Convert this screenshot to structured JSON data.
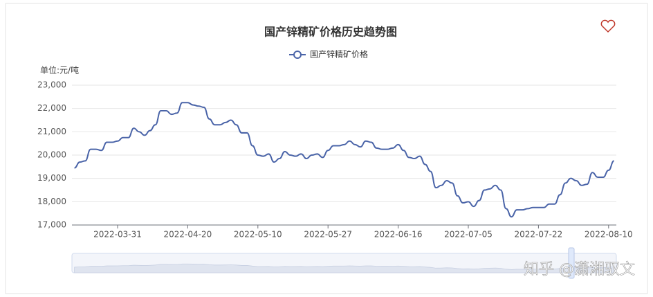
{
  "chart_data": {
    "type": "line",
    "title": "国产锌精矿价格历史趋势图",
    "unit_label": "单位:元/吨",
    "watermark": "知乎 @潇湘驭文",
    "categories": [
      null,
      null,
      null,
      null,
      null,
      null,
      null,
      null,
      "2022-03-31",
      null,
      null,
      null,
      null,
      null,
      null,
      null,
      null,
      null,
      null,
      null,
      null,
      "2022-04-20",
      null,
      null,
      null,
      null,
      null,
      null,
      null,
      null,
      null,
      null,
      null,
      null,
      "2022-05-10",
      null,
      null,
      null,
      null,
      null,
      null,
      null,
      null,
      null,
      null,
      null,
      null,
      "2022-05-27",
      null,
      null,
      null,
      null,
      null,
      null,
      null,
      null,
      null,
      null,
      null,
      null,
      "2022-06-16",
      null,
      null,
      null,
      null,
      null,
      null,
      null,
      null,
      null,
      null,
      null,
      null,
      "2022-07-05",
      null,
      null,
      null,
      null,
      null,
      null,
      null,
      null,
      null,
      null,
      null,
      null,
      "2022-07-22",
      null,
      null,
      null,
      null,
      null,
      null,
      null,
      null,
      null,
      null,
      null,
      null,
      "2022-08-10",
      null
    ],
    "series": [
      {
        "name": "国产锌精矿价格",
        "color": "#4a64a8",
        "values": [
          19450,
          19700,
          19750,
          20250,
          20250,
          20200,
          20550,
          20550,
          20600,
          20750,
          20750,
          21150,
          21000,
          20850,
          21050,
          21300,
          21900,
          21900,
          21750,
          21800,
          22250,
          22250,
          22150,
          22100,
          22050,
          21550,
          21300,
          21300,
          21400,
          21500,
          21300,
          20950,
          20950,
          20400,
          20000,
          19950,
          20050,
          19700,
          19850,
          20150,
          20000,
          19950,
          20050,
          19850,
          20000,
          20050,
          19900,
          20200,
          20400,
          20400,
          20450,
          20600,
          20450,
          20350,
          20600,
          20550,
          20300,
          20250,
          20250,
          20300,
          20450,
          20200,
          19900,
          19850,
          19950,
          19600,
          19300,
          18600,
          18700,
          18900,
          18800,
          18250,
          17950,
          18000,
          17800,
          18050,
          18500,
          18550,
          18700,
          18500,
          17700,
          17350,
          17650,
          17650,
          17700,
          17750,
          17750,
          17750,
          17900,
          17900,
          18300,
          18800,
          19000,
          18900,
          18700,
          18750,
          19250,
          19050,
          19050,
          19350,
          19750
        ]
      }
    ],
    "ylim": [
      17000,
      23000
    ],
    "yticks": [
      {
        "value": 17000,
        "label": "17,000"
      },
      {
        "value": 18000,
        "label": "18,000"
      },
      {
        "value": 19000,
        "label": "19,000"
      },
      {
        "value": 20000,
        "label": "20,000"
      },
      {
        "value": 21000,
        "label": "21,000"
      },
      {
        "value": 22000,
        "label": "22,000"
      },
      {
        "value": 23000,
        "label": "23,000"
      }
    ],
    "grid": true
  }
}
